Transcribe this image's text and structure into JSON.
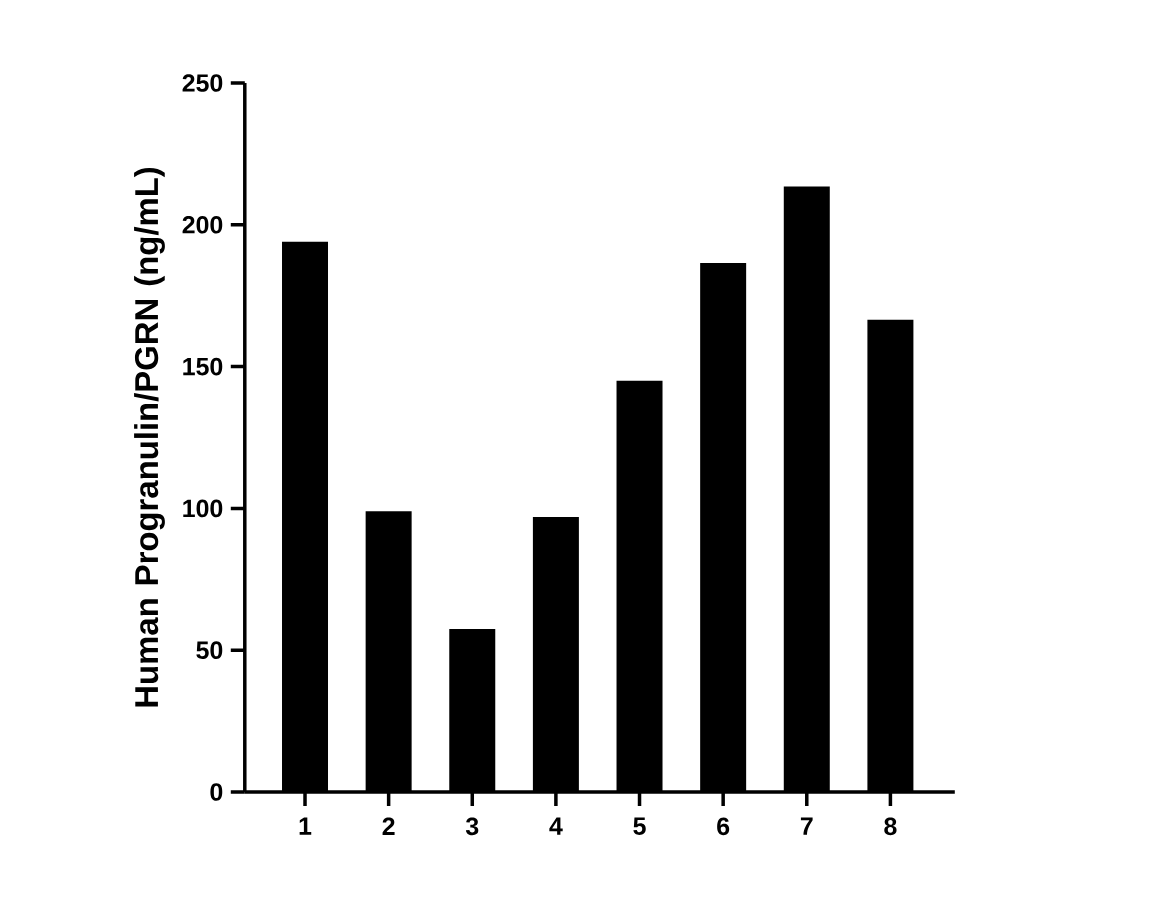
{
  "chart_data": {
    "type": "bar",
    "ylabel": "Human Progranulin/PGRN (ng/mL)",
    "categories": [
      "1",
      "2",
      "3",
      "4",
      "5",
      "6",
      "7",
      "8"
    ],
    "values": [
      194,
      99,
      57.5,
      97,
      145,
      186.5,
      213.5,
      166.5
    ],
    "color": "#000000",
    "ylim": [
      0,
      250
    ],
    "yticks": [
      0,
      50,
      100,
      150,
      200,
      250
    ]
  }
}
